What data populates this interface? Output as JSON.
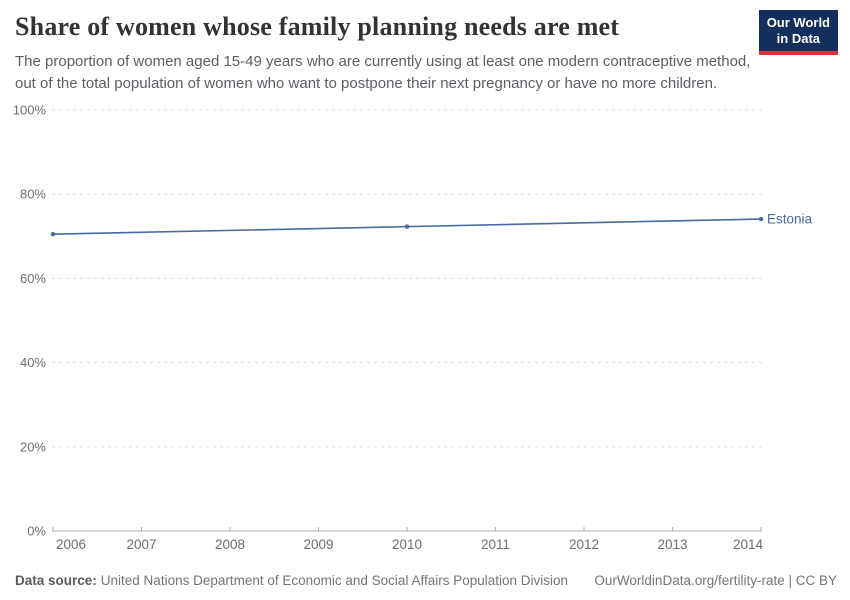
{
  "header": {
    "title": "Share of women whose family planning needs are met",
    "subtitle": "The proportion of women aged 15-49 years who are currently using at least one modern contraceptive method, out of the total population of women who want to postpone their next pregnancy or have no more children.",
    "logo": {
      "line1": "Our World",
      "line2": "in Data"
    }
  },
  "chart_data": {
    "type": "line",
    "title": "Share of women whose family planning needs are met",
    "x": [
      2006,
      2010,
      2014
    ],
    "series": [
      {
        "name": "Estonia",
        "values": [
          70.5,
          72.3,
          74.1
        ],
        "color": "#4C6A9C"
      }
    ],
    "xlabel": "",
    "ylabel": "",
    "xlim": [
      2006,
      2014
    ],
    "ylim": [
      0,
      100
    ],
    "xticks": [
      2006,
      2007,
      2008,
      2009,
      2010,
      2011,
      2012,
      2013,
      2014
    ],
    "yticks": [
      0,
      20,
      40,
      60,
      80,
      100
    ],
    "ytick_suffix": "%",
    "grid": "dashed-horizontal",
    "legend_position": "end-of-line-label",
    "entity_label": "Estonia"
  },
  "footer": {
    "source_label": "Data source:",
    "source_text": "United Nations Department of Economic and Social Affairs Population Division",
    "link_text": "OurWorldinData.org/fertility-rate | CC BY"
  },
  "colors": {
    "line": "#4C6A9C",
    "gridline": "#dcdcdc",
    "axis": "#b0b0b0",
    "tick_text": "#6d6d6d",
    "logo_navy": "#12305b",
    "logo_red": "#d7353c"
  }
}
